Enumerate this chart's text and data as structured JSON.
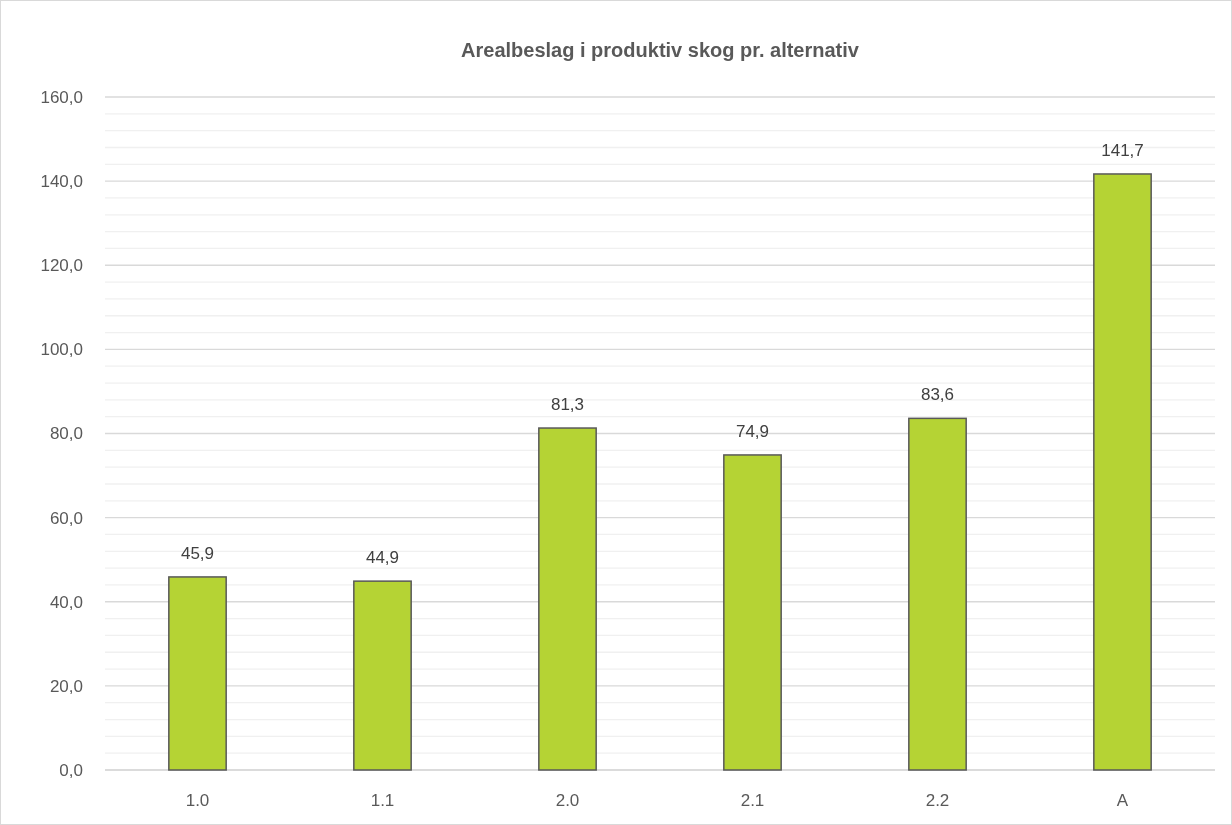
{
  "chart_data": {
    "type": "bar",
    "title": "Arealbeslag i produktiv skog pr. alternativ",
    "categories": [
      "1.0",
      "1.1",
      "2.0",
      "2.1",
      "2.2",
      "A"
    ],
    "values": [
      45.9,
      44.9,
      81.3,
      74.9,
      83.6,
      141.7
    ],
    "value_labels": [
      "45,9",
      "44,9",
      "81,3",
      "74,9",
      "83,6",
      "141,7"
    ],
    "color": "#b5d334",
    "ylim": [
      0,
      160
    ],
    "yticks": [
      {
        "value": 0,
        "label": "0,0"
      },
      {
        "value": 4,
        "label": null
      },
      {
        "value": 8,
        "label": null
      },
      {
        "value": 12,
        "label": null
      },
      {
        "value": 16,
        "label": null
      },
      {
        "value": 20,
        "label": "20,0"
      },
      {
        "value": 24,
        "label": null
      },
      {
        "value": 28,
        "label": null
      },
      {
        "value": 32,
        "label": null
      },
      {
        "value": 36,
        "label": null
      },
      {
        "value": 40,
        "label": "40,0"
      },
      {
        "value": 44,
        "label": null
      },
      {
        "value": 48,
        "label": null
      },
      {
        "value": 52,
        "label": null
      },
      {
        "value": 56,
        "label": null
      },
      {
        "value": 60,
        "label": "60,0"
      },
      {
        "value": 64,
        "label": null
      },
      {
        "value": 68,
        "label": null
      },
      {
        "value": 72,
        "label": null
      },
      {
        "value": 76,
        "label": null
      },
      {
        "value": 80,
        "label": "80,0"
      },
      {
        "value": 84,
        "label": null
      },
      {
        "value": 88,
        "label": null
      },
      {
        "value": 92,
        "label": null
      },
      {
        "value": 96,
        "label": null
      },
      {
        "value": 100,
        "label": "100,0"
      },
      {
        "value": 104,
        "label": null
      },
      {
        "value": 108,
        "label": null
      },
      {
        "value": 112,
        "label": null
      },
      {
        "value": 116,
        "label": null
      },
      {
        "value": 120,
        "label": "120,0"
      },
      {
        "value": 124,
        "label": null
      },
      {
        "value": 128,
        "label": null
      },
      {
        "value": 132,
        "label": null
      },
      {
        "value": 136,
        "label": null
      },
      {
        "value": 140,
        "label": "140,0"
      },
      {
        "value": 144,
        "label": null
      },
      {
        "value": 148,
        "label": null
      },
      {
        "value": 152,
        "label": null
      },
      {
        "value": 156,
        "label": null
      },
      {
        "value": 160,
        "label": "160,0"
      }
    ],
    "grid": true
  }
}
